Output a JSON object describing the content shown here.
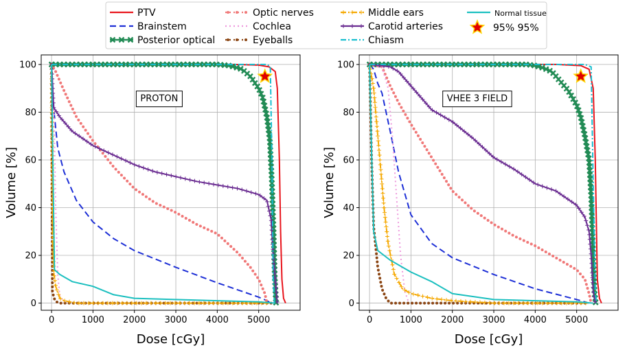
{
  "legend": [
    {
      "label": "PTV",
      "color": "#e8141c",
      "style": "solid",
      "marker": "none"
    },
    {
      "label": "Brainstem",
      "color": "#1d2fd6",
      "style": "dashed",
      "marker": "none"
    },
    {
      "label": "Posterior optical",
      "color": "#228b55",
      "style": "solid",
      "marker": "x"
    },
    {
      "label": "Optic nerves",
      "color": "#f07878",
      "style": "dotted",
      "marker": "dot"
    },
    {
      "label": "Cochlea",
      "color": "#ee99dd",
      "style": "dotted",
      "marker": "none"
    },
    {
      "label": "Eyeballs",
      "color": "#8b4513",
      "style": "dotted",
      "marker": "dot"
    },
    {
      "label": "Middle ears",
      "color": "#f5a800",
      "style": "dashdot",
      "marker": "plus"
    },
    {
      "label": "Carotid arteries",
      "color": "#6a2c91",
      "style": "solid",
      "marker": "plus"
    },
    {
      "label": "Chiasm",
      "color": "#17becf",
      "style": "dashdot",
      "marker": "none"
    },
    {
      "label": "Normal tissue",
      "color": "#1abfbf",
      "style": "solid",
      "marker": "none"
    },
    {
      "label": "95% 95%",
      "color": "#cc0000",
      "style": "none",
      "marker": "star"
    }
  ],
  "chart_data": [
    {
      "type": "line",
      "annotation": "PROTON",
      "xlabel": "Dose [cGy]",
      "ylabel": "Volume [%]",
      "xlim": [
        -250,
        6000
      ],
      "ylim": [
        -3,
        104
      ],
      "xticks": [
        0,
        1000,
        2000,
        3000,
        4000,
        5000
      ],
      "yticks": [
        0,
        20,
        40,
        60,
        80,
        100
      ],
      "grid": true,
      "star": {
        "x": 5150,
        "y": 95
      },
      "series": [
        {
          "name": "PTV",
          "points": [
            [
              0,
              100
            ],
            [
              4400,
              100
            ],
            [
              5000,
              99.7
            ],
            [
              5250,
              99
            ],
            [
              5400,
              97
            ],
            [
              5450,
              90
            ],
            [
              5500,
              60
            ],
            [
              5530,
              30
            ],
            [
              5560,
              10
            ],
            [
              5600,
              2
            ],
            [
              5650,
              0
            ]
          ]
        },
        {
          "name": "Brainstem",
          "points": [
            [
              0,
              100
            ],
            [
              60,
              80
            ],
            [
              150,
              65
            ],
            [
              300,
              55
            ],
            [
              600,
              43
            ],
            [
              1000,
              34
            ],
            [
              1500,
              27
            ],
            [
              2000,
              22
            ],
            [
              3000,
              15
            ],
            [
              4000,
              8.5
            ],
            [
              4500,
              5.5
            ],
            [
              5000,
              2.5
            ],
            [
              5200,
              1
            ],
            [
              5300,
              0
            ]
          ]
        },
        {
          "name": "Posterior optical",
          "points": [
            [
              0,
              100
            ],
            [
              4000,
              100
            ],
            [
              4300,
              99.5
            ],
            [
              4600,
              98
            ],
            [
              4800,
              95
            ],
            [
              5000,
              90
            ],
            [
              5100,
              86
            ],
            [
              5200,
              78
            ],
            [
              5270,
              68
            ],
            [
              5320,
              50
            ],
            [
              5360,
              30
            ],
            [
              5390,
              10
            ],
            [
              5420,
              0
            ]
          ]
        },
        {
          "name": "Optic nerves",
          "points": [
            [
              0,
              100
            ],
            [
              100,
              97
            ],
            [
              300,
              89
            ],
            [
              600,
              78
            ],
            [
              1000,
              68
            ],
            [
              1500,
              57
            ],
            [
              2000,
              48
            ],
            [
              2500,
              42
            ],
            [
              3000,
              38
            ],
            [
              3500,
              33
            ],
            [
              4000,
              29
            ],
            [
              4500,
              21
            ],
            [
              4800,
              15
            ],
            [
              5000,
              10
            ],
            [
              5150,
              4
            ],
            [
              5200,
              0
            ]
          ]
        },
        {
          "name": "Cochlea",
          "points": [
            [
              0,
              100
            ],
            [
              60,
              80
            ],
            [
              100,
              40
            ],
            [
              150,
              12
            ],
            [
              200,
              3
            ],
            [
              300,
              0.5
            ],
            [
              400,
              0
            ]
          ]
        },
        {
          "name": "Eyeballs",
          "points": [
            [
              0,
              100
            ],
            [
              20,
              5
            ],
            [
              60,
              2
            ],
            [
              120,
              0.5
            ],
            [
              200,
              0
            ],
            [
              5300,
              0
            ]
          ]
        },
        {
          "name": "Middle ears",
          "points": [
            [
              0,
              100
            ],
            [
              30,
              25
            ],
            [
              60,
              12
            ],
            [
              100,
              7
            ],
            [
              200,
              2
            ],
            [
              300,
              1
            ],
            [
              600,
              0
            ],
            [
              5300,
              0
            ]
          ]
        },
        {
          "name": "Carotid arteries",
          "points": [
            [
              0,
              100
            ],
            [
              50,
              82
            ],
            [
              200,
              78
            ],
            [
              500,
              72
            ],
            [
              1000,
              66
            ],
            [
              1500,
              62
            ],
            [
              2000,
              58
            ],
            [
              2500,
              55
            ],
            [
              3000,
              53
            ],
            [
              3500,
              51
            ],
            [
              4000,
              49.5
            ],
            [
              4500,
              48
            ],
            [
              5000,
              45.5
            ],
            [
              5200,
              43
            ],
            [
              5300,
              35
            ],
            [
              5350,
              20
            ],
            [
              5400,
              10
            ],
            [
              5450,
              0
            ]
          ]
        },
        {
          "name": "Chiasm",
          "points": [
            [
              0,
              100
            ],
            [
              5200,
              100
            ],
            [
              5280,
              99
            ],
            [
              5320,
              60
            ],
            [
              5350,
              10
            ],
            [
              5380,
              0
            ]
          ]
        },
        {
          "name": "Normal tissue",
          "points": [
            [
              0,
              100
            ],
            [
              30,
              60
            ],
            [
              70,
              14
            ],
            [
              200,
              12
            ],
            [
              500,
              9
            ],
            [
              1000,
              7
            ],
            [
              1500,
              3.5
            ],
            [
              2000,
              2
            ],
            [
              3000,
              1.5
            ],
            [
              4000,
              1
            ],
            [
              5000,
              0.5
            ],
            [
              5400,
              0
            ]
          ]
        }
      ]
    },
    {
      "type": "line",
      "annotation": "VHEE 3 FIELD",
      "xlabel": "Dose [cGy]",
      "ylabel": "Volume [%]",
      "xlim": [
        -250,
        6000
      ],
      "ylim": [
        -3,
        104
      ],
      "xticks": [
        0,
        1000,
        2000,
        3000,
        4000,
        5000
      ],
      "yticks": [
        0,
        20,
        40,
        60,
        80,
        100
      ],
      "grid": true,
      "star": {
        "x": 5100,
        "y": 95
      },
      "series": [
        {
          "name": "PTV",
          "points": [
            [
              0,
              100
            ],
            [
              4500,
              100
            ],
            [
              5100,
              99.5
            ],
            [
              5300,
              98
            ],
            [
              5400,
              90
            ],
            [
              5450,
              60
            ],
            [
              5480,
              30
            ],
            [
              5500,
              10
            ],
            [
              5550,
              2
            ],
            [
              5600,
              0
            ]
          ]
        },
        {
          "name": "Brainstem",
          "points": [
            [
              0,
              100
            ],
            [
              100,
              98
            ],
            [
              200,
              92
            ],
            [
              300,
              88
            ],
            [
              500,
              72
            ],
            [
              700,
              55
            ],
            [
              1000,
              37
            ],
            [
              1500,
              25
            ],
            [
              2000,
              19
            ],
            [
              3000,
              12
            ],
            [
              4000,
              6
            ],
            [
              5000,
              1.5
            ],
            [
              5300,
              0
            ]
          ]
        },
        {
          "name": "Posterior optical",
          "points": [
            [
              0,
              100
            ],
            [
              3800,
              100
            ],
            [
              4000,
              99.5
            ],
            [
              4200,
              98.5
            ],
            [
              4400,
              97
            ],
            [
              4600,
              93
            ],
            [
              4800,
              89
            ],
            [
              5000,
              83
            ],
            [
              5100,
              78
            ],
            [
              5200,
              70
            ],
            [
              5300,
              60
            ],
            [
              5350,
              45
            ],
            [
              5400,
              20
            ],
            [
              5430,
              5
            ],
            [
              5460,
              0
            ]
          ]
        },
        {
          "name": "Optic nerves",
          "points": [
            [
              0,
              100
            ],
            [
              300,
              99
            ],
            [
              500,
              91
            ],
            [
              700,
              84
            ],
            [
              1000,
              75
            ],
            [
              1500,
              61
            ],
            [
              2000,
              47
            ],
            [
              2500,
              39
            ],
            [
              3000,
              33
            ],
            [
              3500,
              28
            ],
            [
              4000,
              24
            ],
            [
              4500,
              19
            ],
            [
              5000,
              14
            ],
            [
              5200,
              10
            ],
            [
              5300,
              4
            ],
            [
              5350,
              0
            ]
          ]
        },
        {
          "name": "Cochlea",
          "points": [
            [
              0,
              100
            ],
            [
              300,
              99
            ],
            [
              450,
              90
            ],
            [
              550,
              70
            ],
            [
              650,
              45
            ],
            [
              750,
              20
            ],
            [
              850,
              5
            ],
            [
              950,
              0
            ]
          ]
        },
        {
          "name": "Eyeballs",
          "points": [
            [
              0,
              100
            ],
            [
              50,
              60
            ],
            [
              100,
              32
            ],
            [
              200,
              15
            ],
            [
              300,
              6
            ],
            [
              400,
              2
            ],
            [
              500,
              0
            ],
            [
              5300,
              0
            ]
          ]
        },
        {
          "name": "Middle ears",
          "points": [
            [
              0,
              100
            ],
            [
              100,
              90
            ],
            [
              150,
              80
            ],
            [
              250,
              60
            ],
            [
              350,
              40
            ],
            [
              450,
              25
            ],
            [
              600,
              12
            ],
            [
              800,
              6
            ],
            [
              1000,
              4
            ],
            [
              1500,
              2
            ],
            [
              2000,
              1
            ],
            [
              3000,
              0
            ],
            [
              5300,
              0
            ]
          ]
        },
        {
          "name": "Carotid arteries",
          "points": [
            [
              0,
              100
            ],
            [
              500,
              99
            ],
            [
              700,
              97
            ],
            [
              1000,
              91
            ],
            [
              1500,
              81
            ],
            [
              2000,
              76
            ],
            [
              2500,
              69
            ],
            [
              3000,
              61
            ],
            [
              3500,
              56
            ],
            [
              4000,
              50
            ],
            [
              4500,
              47
            ],
            [
              5000,
              41
            ],
            [
              5200,
              36
            ],
            [
              5300,
              30
            ],
            [
              5350,
              20
            ],
            [
              5400,
              5
            ],
            [
              5450,
              0
            ]
          ]
        },
        {
          "name": "Chiasm",
          "points": [
            [
              0,
              100
            ],
            [
              5200,
              100
            ],
            [
              5350,
              99
            ],
            [
              5400,
              50
            ],
            [
              5450,
              5
            ],
            [
              5480,
              0
            ]
          ]
        },
        {
          "name": "Normal tissue",
          "points": [
            [
              0,
              100
            ],
            [
              40,
              70
            ],
            [
              100,
              30
            ],
            [
              200,
              22
            ],
            [
              500,
              18
            ],
            [
              1000,
              13
            ],
            [
              1500,
              9
            ],
            [
              2000,
              4
            ],
            [
              3000,
              1.5
            ],
            [
              4000,
              1
            ],
            [
              5000,
              0.5
            ],
            [
              5400,
              0
            ]
          ]
        }
      ]
    }
  ]
}
